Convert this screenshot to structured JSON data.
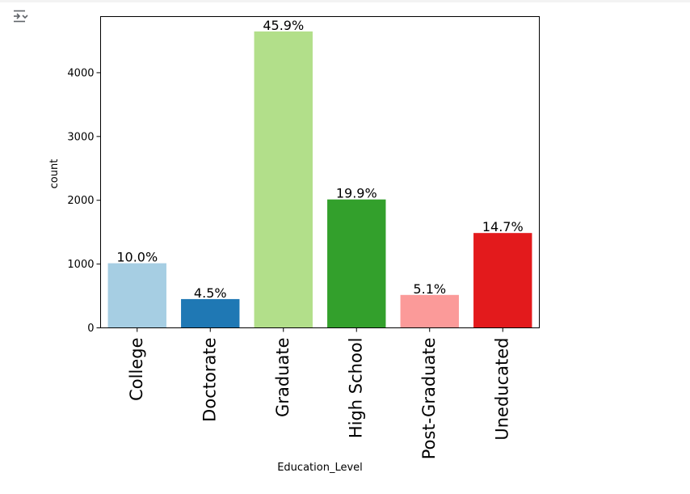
{
  "toolbar": {
    "icon": "output-collapse-icon"
  },
  "chart_data": {
    "type": "bar",
    "categories": [
      "College",
      "Doctorate",
      "Graduate",
      "High School",
      "Post-Graduate",
      "Uneducated"
    ],
    "values": [
      1013,
      451,
      4647,
      2013,
      516,
      1487
    ],
    "data_labels": [
      "10.0%",
      "4.5%",
      "45.9%",
      "19.9%",
      "5.1%",
      "14.7%"
    ],
    "colors": [
      "#a6cee3",
      "#1f78b4",
      "#b2df8a",
      "#33a02c",
      "#fb9a99",
      "#e31a1c"
    ],
    "xlabel": "Education_Level",
    "ylabel": "count",
    "yticks": [
      0,
      1000,
      2000,
      3000,
      4000
    ],
    "ylim": [
      0,
      4880
    ],
    "grid": false,
    "legend": "none"
  }
}
